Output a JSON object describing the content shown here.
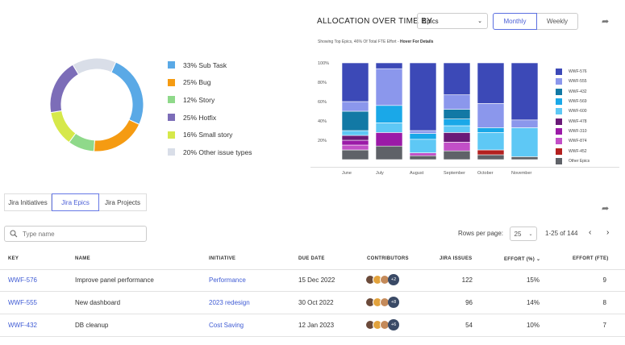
{
  "issue_types": [
    {
      "label": "33% Sub Task",
      "value": 33,
      "color": "#5aa9e6"
    },
    {
      "label": "25% Bug",
      "value": 25,
      "color": "#f59b12"
    },
    {
      "label": "12% Story",
      "value": 12,
      "color": "#8fd98a"
    },
    {
      "label": "25% Hotfix",
      "value": 25,
      "color": "#7c6db8"
    },
    {
      "label": "16% Small story",
      "value": 16,
      "color": "#d6e84a"
    },
    {
      "label": "20% Other issue types",
      "value": 20,
      "color": "#d9dee8"
    }
  ],
  "allocation": {
    "title": "ALLOCATION OVER TIME BY",
    "group_by": "Epics",
    "period_options": [
      "Monthly",
      "Weekly"
    ],
    "selected_period": "Monthly",
    "subtitle": "Showing Top Epics, 46% Of Total FTE Effort -",
    "subtitle_hint": "Hover For Details"
  },
  "chart_data": {
    "type": "bar",
    "stacked": true,
    "categories": [
      "June",
      "July",
      "August",
      "September",
      "October",
      "November"
    ],
    "y_ticks": [
      "20%",
      "40%",
      "60%",
      "80%",
      "100%"
    ],
    "ylim": [
      0,
      100
    ],
    "series": [
      {
        "name": "Other Epics",
        "color": "#5f6268",
        "values": [
          10,
          14,
          4,
          9,
          5,
          3
        ]
      },
      {
        "name": "WWF-452",
        "color": "#b3201f",
        "values": [
          0,
          0,
          0,
          0,
          5,
          0
        ]
      },
      {
        "name": "WWF-874",
        "color": "#c24fc7",
        "values": [
          5,
          0,
          3,
          9,
          0,
          0
        ]
      },
      {
        "name": "WWF-310",
        "color": "#9b1aa7",
        "values": [
          5,
          14,
          0,
          0,
          0,
          0
        ]
      },
      {
        "name": "WWF-478",
        "color": "#6a1a78",
        "values": [
          5,
          0,
          0,
          10,
          0,
          0
        ]
      },
      {
        "name": "WWF-600",
        "color": "#5ec8f5",
        "values": [
          5,
          10,
          14,
          7,
          18,
          30
        ]
      },
      {
        "name": "WWF-569",
        "color": "#1aa8e8",
        "values": [
          0,
          18,
          6,
          7,
          5,
          0
        ]
      },
      {
        "name": "WWF-432",
        "color": "#1279a5",
        "values": [
          20,
          0,
          0,
          10,
          0,
          0
        ]
      },
      {
        "name": "WWF-555",
        "color": "#8b97ec",
        "values": [
          10,
          38,
          3,
          15,
          25,
          8
        ]
      },
      {
        "name": "WWF-576",
        "color": "#3c49b7",
        "values": [
          40,
          6,
          70,
          33,
          42,
          59
        ]
      }
    ]
  },
  "tabs": [
    {
      "label": "Jira Initiatives",
      "active": false
    },
    {
      "label": "Jira Epics",
      "active": true
    },
    {
      "label": "Jira Projects",
      "active": false
    }
  ],
  "search": {
    "placeholder": "Type name"
  },
  "pagination": {
    "rows_label": "Rows per page:",
    "rows_value": "25",
    "range": "1-25 of 144"
  },
  "table": {
    "headers": {
      "key": "KEY",
      "name": "NAME",
      "initiative": "INITIATIVE",
      "due": "DUE DATE",
      "contributors": "CONTRIBUTORS",
      "issues": "JIRA ISSUES",
      "effort": "EFFORT (%)",
      "fte": "EFFORT (FTE)"
    },
    "rows": [
      {
        "key": "WWF-576",
        "name": "Improve panel performance",
        "initiative": "Performance",
        "due": "15 Dec 2022",
        "more": "+2",
        "issues": "122",
        "effort": "15%",
        "fte": "9"
      },
      {
        "key": "WWF-555",
        "name": "New dashboard",
        "initiative": "2023 redesign",
        "due": "30 Oct 2022",
        "more": "+8",
        "issues": "96",
        "effort": "14%",
        "fte": "8"
      },
      {
        "key": "WWF-432",
        "name": "DB cleanup",
        "initiative": "Cost Saving",
        "due": "12 Jan 2023",
        "more": "+6",
        "issues": "54",
        "effort": "10%",
        "fte": "7"
      }
    ]
  },
  "avatar_colors": [
    "#6b4a3a",
    "#e2a23c",
    "#c48a5a"
  ]
}
